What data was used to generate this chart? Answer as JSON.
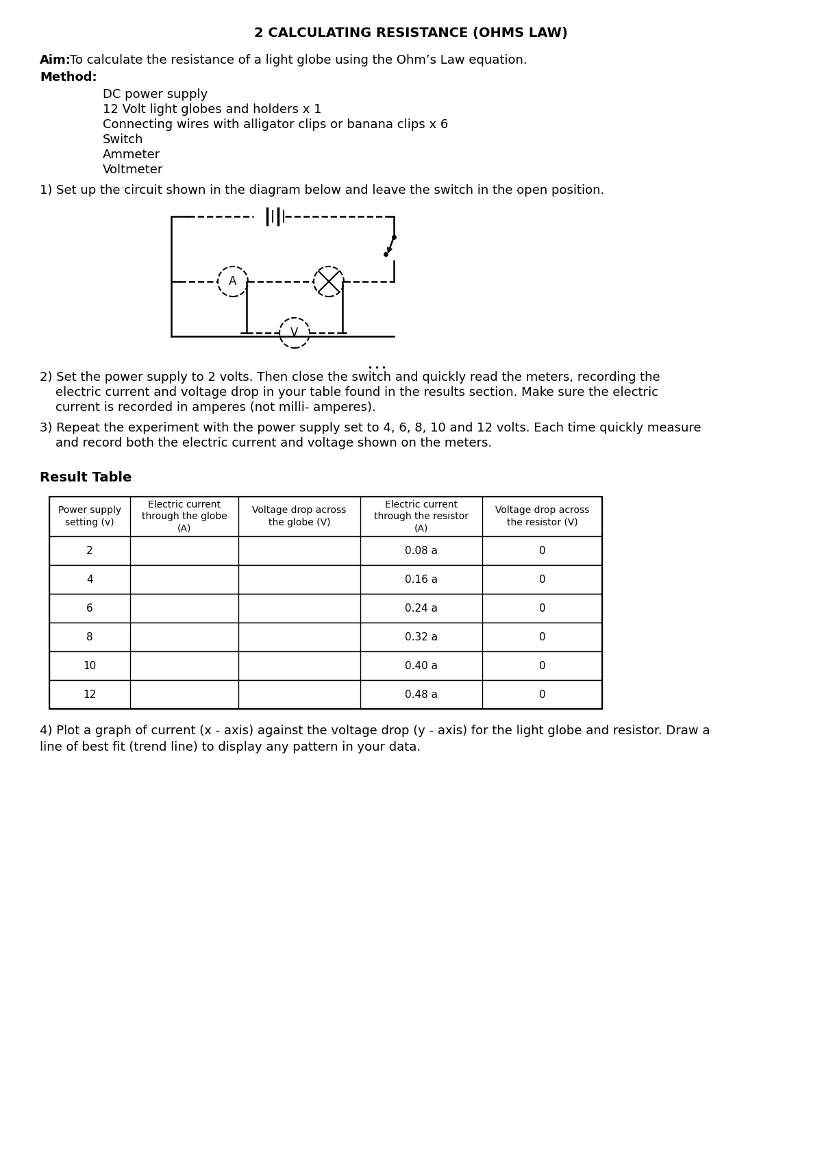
{
  "title": "2 CALCULATING RESISTANCE (OHMS LAW)",
  "aim_label": "Aim:",
  "aim_text": " To calculate the resistance of a light globe using the Ohm’s Law equation.",
  "method_label": "Method:",
  "method_items": [
    "DC power supply",
    "12 Volt light globes and holders x 1",
    "Connecting wires with alligator clips or banana clips x 6",
    "Switch",
    "Ammeter",
    "Voltmeter"
  ],
  "step1": "1) Set up the circuit shown in the diagram below and leave the switch in the open position.",
  "step2_lines": [
    "2) Set the power supply to 2 volts. Then close the switch and quickly read the meters, recording the",
    "    electric current and voltage drop in your table found in the results section. Make sure the electric",
    "    current is recorded in amperes (not milli- amperes)."
  ],
  "step3_lines": [
    "3) Repeat the experiment with the power supply set to 4, 6, 8, 10 and 12 volts. Each time quickly measure",
    "    and record both the electric current and voltage shown on the meters."
  ],
  "result_table_label": "Result Table",
  "table_headers": [
    "Power supply\nsetting (v)",
    "Electric current\nthrough the globe\n(A)",
    "Voltage drop across\nthe globe (V)",
    "Electric current\nthrough the resistor\n(A)",
    "Voltage drop across\nthe resistor (V)"
  ],
  "table_rows": [
    [
      "2",
      "",
      "",
      "0.08 a",
      "0"
    ],
    [
      "4",
      "",
      "",
      "0.16 a",
      "0"
    ],
    [
      "6",
      "",
      "",
      "0.24 a",
      "0"
    ],
    [
      "8",
      "",
      "",
      "0.32 a",
      "0"
    ],
    [
      "10",
      "",
      "",
      "0.40 a",
      "0"
    ],
    [
      "12",
      "",
      "",
      "0.48 a",
      "0"
    ]
  ],
  "step4_lines": [
    "4) Plot a graph of current (x - axis) against the voltage drop (y - axis) for the light globe and resistor. Draw a",
    "line of best fit (trend line) to display any pattern in your data."
  ],
  "bg_color": "#ffffff",
  "text_color": "#000000",
  "font_size": 13,
  "title_font_size": 14,
  "table_font_size": 11,
  "header_font_size": 10
}
